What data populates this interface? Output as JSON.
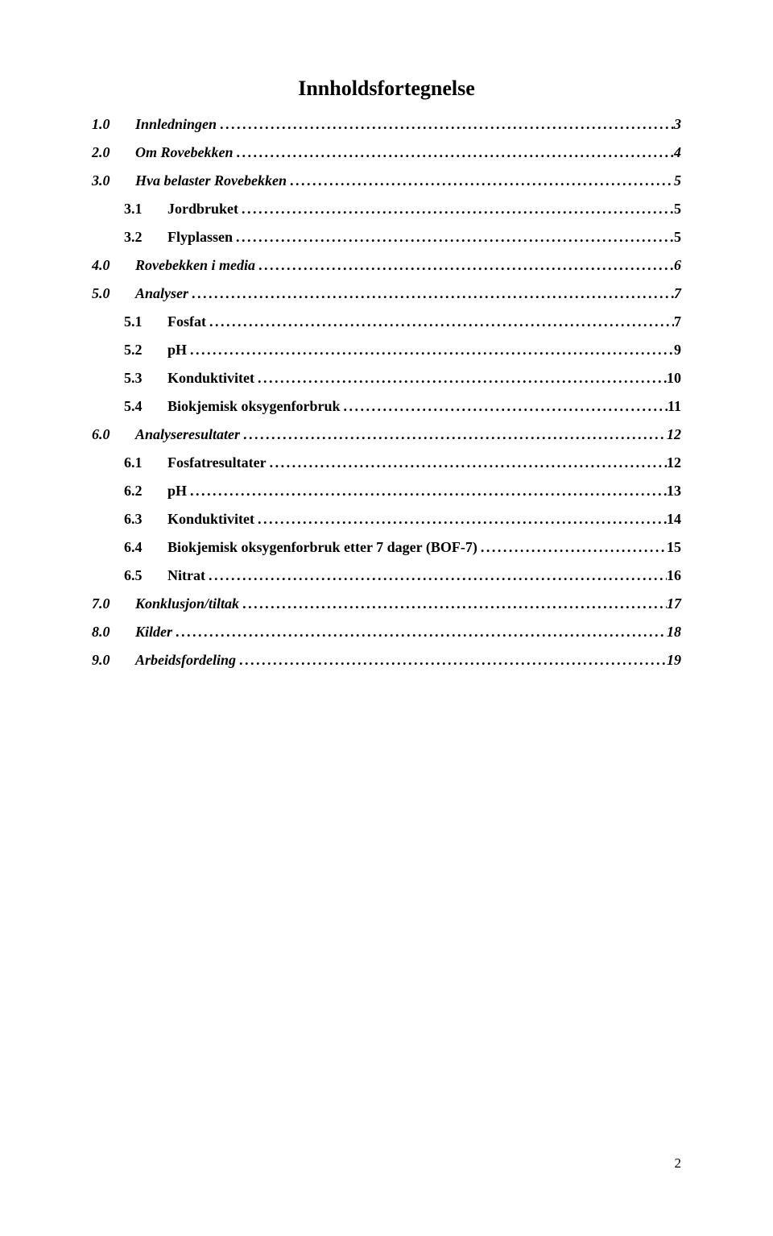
{
  "title": "Innholdsfortegnelse",
  "footer_page": "2",
  "entries": [
    {
      "level": 1,
      "num": "1.0",
      "label": "Innledningen",
      "page": "3"
    },
    {
      "level": 1,
      "num": "2.0",
      "label": "Om Rovebekken",
      "page": "4"
    },
    {
      "level": 1,
      "num": "3.0",
      "label": "Hva belaster Rovebekken",
      "page": "5"
    },
    {
      "level": 2,
      "num": "3.1",
      "label": "Jordbruket",
      "page": "5"
    },
    {
      "level": 2,
      "num": "3.2",
      "label": "Flyplassen",
      "page": "5"
    },
    {
      "level": 1,
      "num": "4.0",
      "label": "Rovebekken i media",
      "page": "6"
    },
    {
      "level": 1,
      "num": "5.0",
      "label": "Analyser",
      "page": "7"
    },
    {
      "level": 2,
      "num": "5.1",
      "label": "Fosfat",
      "page": "7"
    },
    {
      "level": 2,
      "num": "5.2",
      "label": "pH",
      "page": "9"
    },
    {
      "level": 2,
      "num": "5.3",
      "label": "Konduktivitet",
      "page": "10"
    },
    {
      "level": 2,
      "num": "5.4",
      "label": "Biokjemisk oksygenforbruk",
      "page": "11"
    },
    {
      "level": 1,
      "num": "6.0",
      "label": "Analyseresultater",
      "page": "12"
    },
    {
      "level": 2,
      "num": "6.1",
      "label": "Fosfatresultater",
      "page": "12"
    },
    {
      "level": 2,
      "num": "6.2",
      "label": "pH",
      "page": "13"
    },
    {
      "level": 2,
      "num": "6.3",
      "label": "Konduktivitet",
      "page": "14"
    },
    {
      "level": 2,
      "num": "6.4",
      "label": "Biokjemisk oksygenforbruk etter 7 dager (BOF-7)",
      "page": "15"
    },
    {
      "level": 2,
      "num": "6.5",
      "label": "Nitrat",
      "page": "16"
    },
    {
      "level": 1,
      "num": "7.0",
      "label": "Konklusjon/tiltak",
      "page": "17"
    },
    {
      "level": 1,
      "num": "8.0",
      "label": "Kilder",
      "page": "18"
    },
    {
      "level": 1,
      "num": "9.0",
      "label": "Arbeidsfordeling",
      "page": "19"
    }
  ]
}
